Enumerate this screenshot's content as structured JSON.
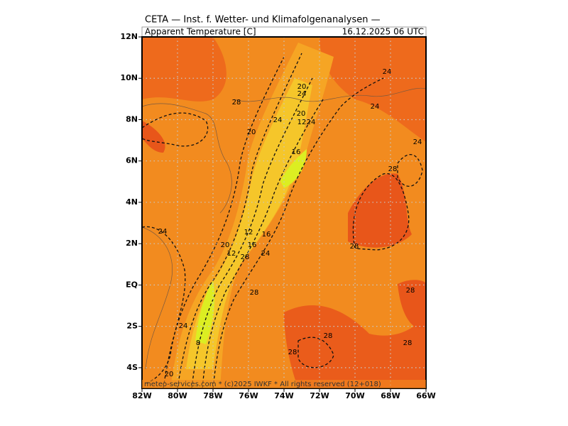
{
  "header": {
    "title": "CETA — Inst. f. Wetter- und Klimafolgenanalysen —",
    "variable": "Apparent Temperature [C]",
    "valid_time": "16.12.2025 06 UTC"
  },
  "map": {
    "lon_ticks": [
      {
        "value": -82,
        "label": "82W"
      },
      {
        "value": -80,
        "label": "80W"
      },
      {
        "value": -78,
        "label": "78W"
      },
      {
        "value": -76,
        "label": "76W"
      },
      {
        "value": -74,
        "label": "74W"
      },
      {
        "value": -72,
        "label": "72W"
      },
      {
        "value": -70,
        "label": "70W"
      },
      {
        "value": -68,
        "label": "68W"
      },
      {
        "value": -66,
        "label": "66W"
      }
    ],
    "lat_ticks": [
      {
        "value": 12,
        "label": "12N"
      },
      {
        "value": 10,
        "label": "10N"
      },
      {
        "value": 8,
        "label": "8N"
      },
      {
        "value": 6,
        "label": "6N"
      },
      {
        "value": 4,
        "label": "4N"
      },
      {
        "value": 2,
        "label": "2N"
      },
      {
        "value": 0,
        "label": "EQ"
      },
      {
        "value": -2,
        "label": "2S"
      },
      {
        "value": -4,
        "label": "4S"
      }
    ],
    "lon_range": [
      -82,
      -66
    ],
    "lat_range": [
      12,
      -5
    ],
    "contour_labels": [
      24,
      20,
      24,
      28,
      20,
      24,
      12,
      24,
      24,
      20,
      24,
      16,
      28,
      24,
      12,
      16,
      20,
      16,
      12,
      24,
      28,
      28,
      28,
      28,
      24,
      28,
      28,
      28,
      8,
      20
    ]
  },
  "footer": "meteo-services.com * (c)2025 IWKF * All rights reserved (12+018)"
}
